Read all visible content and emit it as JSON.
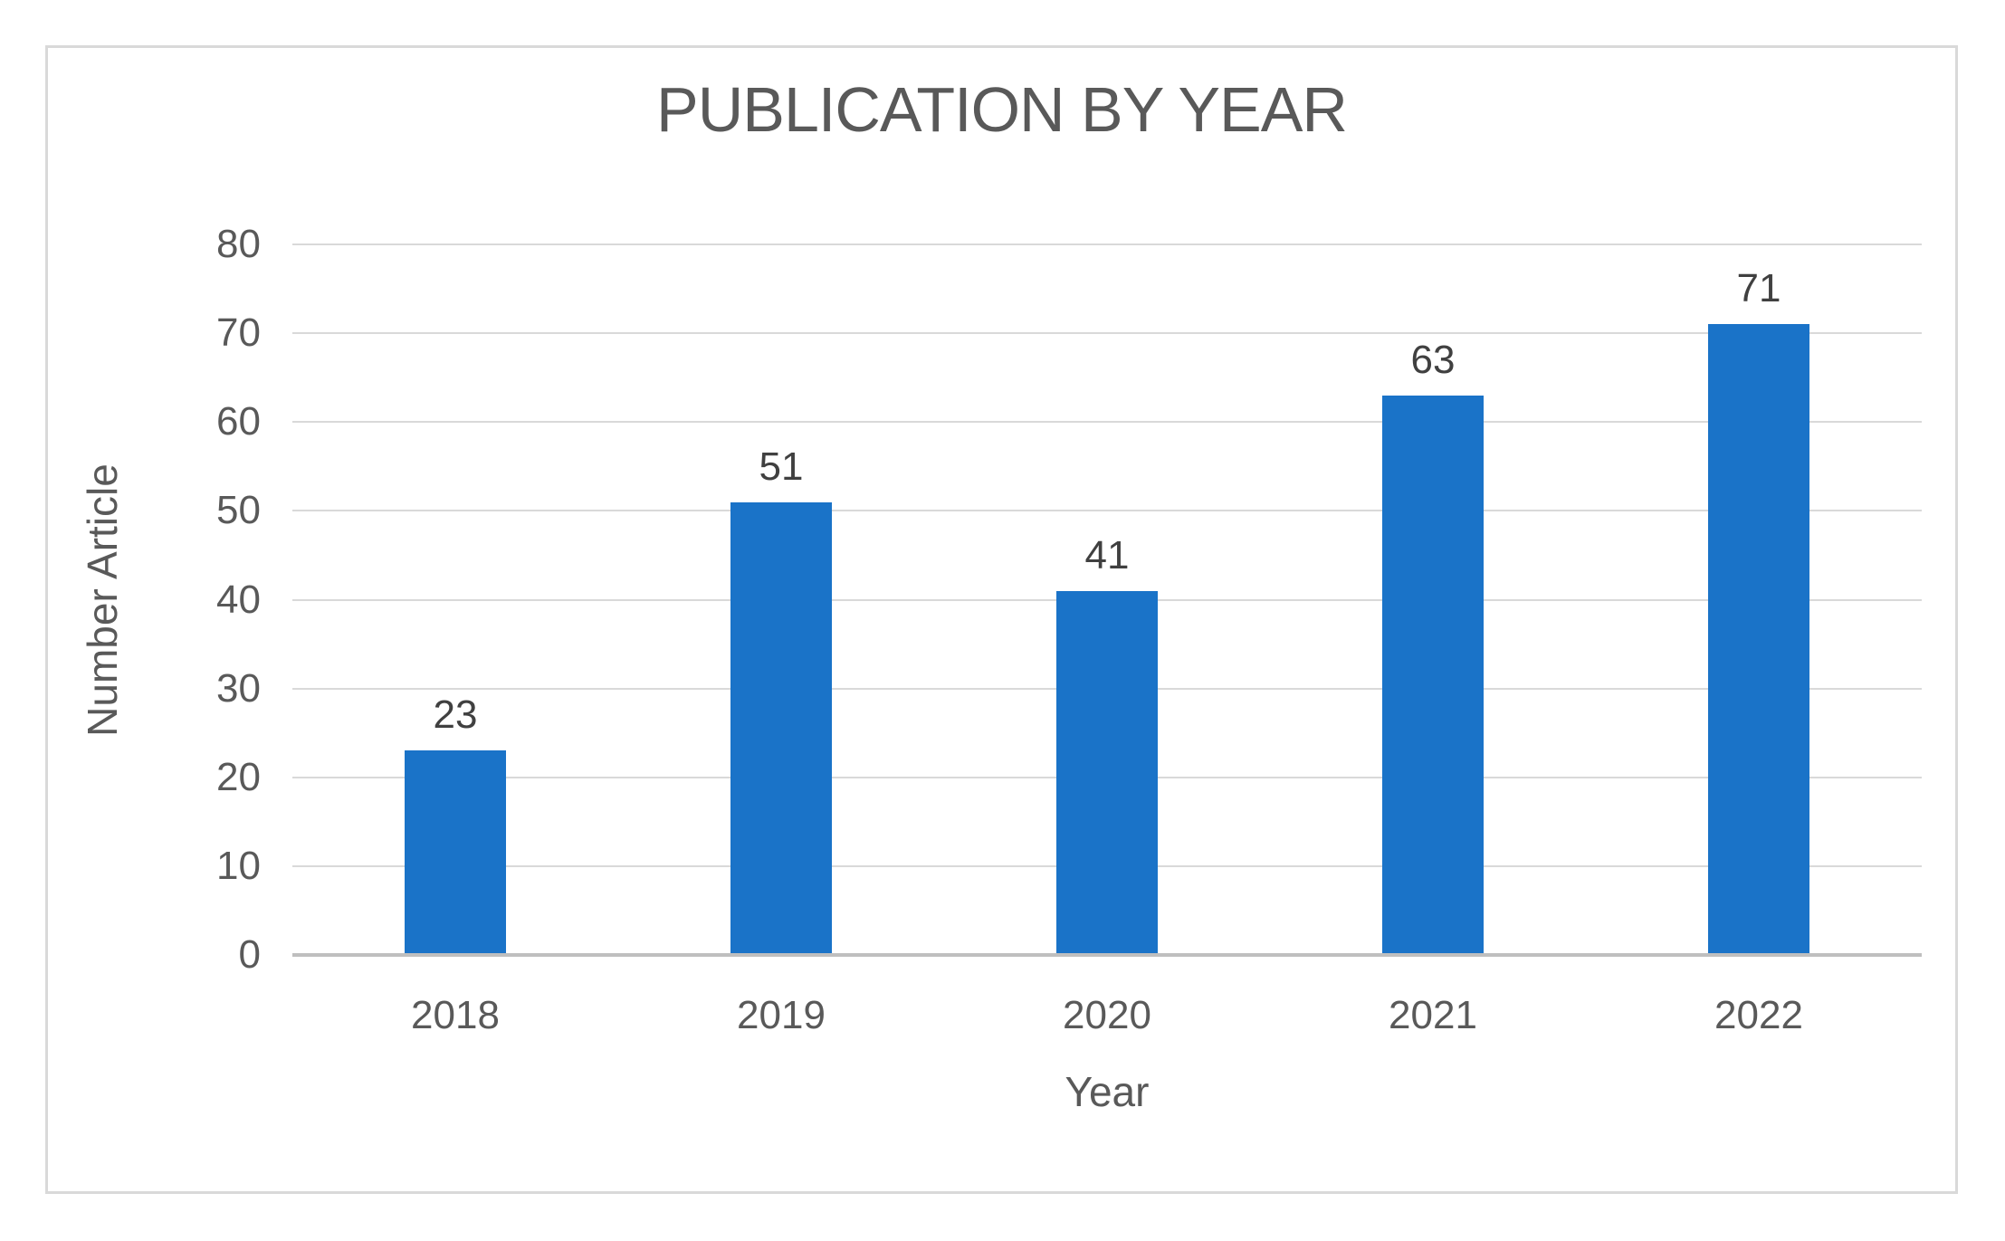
{
  "chart_data": {
    "type": "bar",
    "title": "PUBLICATION BY YEAR",
    "categories": [
      "2018",
      "2019",
      "2020",
      "2021",
      "2022"
    ],
    "values": [
      23,
      51,
      41,
      63,
      71
    ],
    "data_labels": [
      "23",
      "51",
      "41",
      "63",
      "71"
    ],
    "xlabel": "Year",
    "ylabel": "Number Article",
    "ylim": [
      0,
      80
    ],
    "ytick_step": 10,
    "ytick_labels": [
      "0",
      "10",
      "20",
      "30",
      "40",
      "50",
      "60",
      "70",
      "80"
    ],
    "grid": true,
    "legend": "none"
  },
  "colors": {
    "bar": "#1A73C8",
    "title_text": "#595959",
    "axis_text": "#595959",
    "data_label_text": "#404040",
    "gridline": "#D9D9D9",
    "axis_line": "#BFBFBF",
    "frame_border": "#D9D9D9",
    "background": "#FFFFFF"
  }
}
